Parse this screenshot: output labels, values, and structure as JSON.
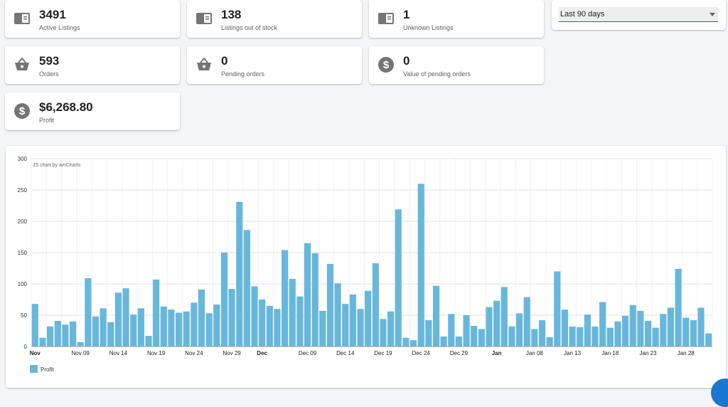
{
  "stats": [
    {
      "value": "3491",
      "label": "Active Listings",
      "icon": "listing-icon"
    },
    {
      "value": "138",
      "label": "Listings out of stock",
      "icon": "listing-icon"
    },
    {
      "value": "1",
      "label": "Unknown Listings",
      "icon": "listing-icon"
    },
    {
      "value": "593",
      "label": "Orders",
      "icon": "basket-icon"
    },
    {
      "value": "0",
      "label": "Pending orders",
      "icon": "basket-icon"
    },
    {
      "value": "0",
      "label": "Value of pending orders",
      "icon": "dollar-icon"
    },
    {
      "value": "$6,268.80",
      "label": "Profit",
      "icon": "dollar-icon"
    }
  ],
  "period_select": {
    "value": "Last 90 days"
  },
  "colors": {
    "bar": "#67b7dc",
    "accent": "#3f51b5",
    "icon": "#757575"
  },
  "chart_data": {
    "type": "bar",
    "credit": "JS chart by amCharts",
    "ylim": [
      0,
      300
    ],
    "yticks": [
      "0",
      "50",
      "100",
      "150",
      "200",
      "250",
      "300"
    ],
    "xticks": [
      {
        "label": "Nov",
        "index": 0,
        "bold": true
      },
      {
        "label": "Nov 09",
        "index": 6,
        "bold": false
      },
      {
        "label": "Nov 14",
        "index": 11,
        "bold": false
      },
      {
        "label": "Nov 19",
        "index": 16,
        "bold": false
      },
      {
        "label": "Nov 24",
        "index": 21,
        "bold": false
      },
      {
        "label": "Nov 29",
        "index": 26,
        "bold": false
      },
      {
        "label": "Dec",
        "index": 30,
        "bold": true
      },
      {
        "label": "Dec 09",
        "index": 36,
        "bold": false
      },
      {
        "label": "Dec 14",
        "index": 41,
        "bold": false
      },
      {
        "label": "Dec 19",
        "index": 46,
        "bold": false
      },
      {
        "label": "Dec 24",
        "index": 51,
        "bold": false
      },
      {
        "label": "Dec 29",
        "index": 56,
        "bold": false
      },
      {
        "label": "Jan",
        "index": 61,
        "bold": true
      },
      {
        "label": "Jan 08",
        "index": 66,
        "bold": false
      },
      {
        "label": "Jan 13",
        "index": 71,
        "bold": false
      },
      {
        "label": "Jan 18",
        "index": 76,
        "bold": false
      },
      {
        "label": "Jan 23",
        "index": 81,
        "bold": false
      },
      {
        "label": "Jan 28",
        "index": 86,
        "bold": false
      }
    ],
    "series": [
      {
        "name": "Profit",
        "values": [
          68,
          14,
          32,
          41,
          35,
          40,
          7,
          109,
          48,
          61,
          39,
          86,
          93,
          51,
          61,
          17,
          107,
          64,
          59,
          54,
          56,
          70,
          91,
          53,
          67,
          150,
          92,
          231,
          186,
          96,
          75,
          65,
          60,
          154,
          108,
          80,
          165,
          149,
          57,
          132,
          101,
          68,
          83,
          60,
          89,
          133,
          44,
          56,
          219,
          14,
          10,
          260,
          42,
          97,
          16,
          52,
          16,
          50,
          33,
          28,
          63,
          73,
          95,
          32,
          53,
          79,
          28,
          42,
          15,
          120,
          59,
          32,
          31,
          51,
          32,
          71,
          30,
          40,
          49,
          66,
          57,
          41,
          30,
          52,
          62,
          124,
          46,
          42,
          62,
          21
        ]
      }
    ]
  }
}
